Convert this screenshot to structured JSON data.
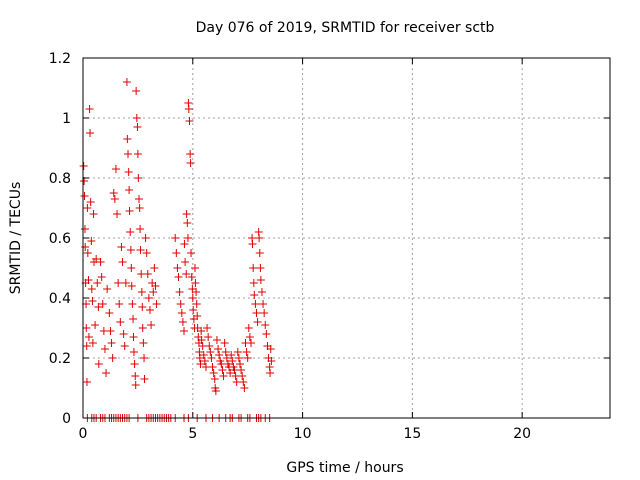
{
  "chart_data": {
    "type": "scatter",
    "title": "Day 076 of 2019, SRMTID for receiver sctb",
    "xlabel": "GPS time / hours",
    "ylabel": "SRMTID / TECUs",
    "xlim": [
      0,
      24
    ],
    "ylim": [
      0,
      1.2
    ],
    "xticks": [
      0,
      5,
      10,
      15,
      20
    ],
    "xtick_labels": [
      "0",
      "5",
      "10",
      "15",
      "20"
    ],
    "yticks": [
      0,
      0.2,
      0.4,
      0.6,
      0.8,
      1.0,
      1.2
    ],
    "ytick_labels": [
      "0",
      "0.2",
      "0.4",
      "0.6",
      "0.8",
      "1",
      "1.2"
    ],
    "grid": true,
    "marker": "+",
    "color": "#e00000",
    "series": [
      {
        "name": "SRMTID",
        "points": [
          [
            0.03,
            0.84
          ],
          [
            0.05,
            0.79
          ],
          [
            0.07,
            0.74
          ],
          [
            0.09,
            0.63
          ],
          [
            0.1,
            0.57
          ],
          [
            0.12,
            0.45
          ],
          [
            0.14,
            0.38
          ],
          [
            0.15,
            0.3
          ],
          [
            0.17,
            0.24
          ],
          [
            0.18,
            0.12
          ],
          [
            0.2,
            0.7
          ],
          [
            0.22,
            0.55
          ],
          [
            0.25,
            0.46
          ],
          [
            0.27,
            0.27
          ],
          [
            0.3,
            1.03
          ],
          [
            0.32,
            0.95
          ],
          [
            0.35,
            0.72
          ],
          [
            0.38,
            0.59
          ],
          [
            0.4,
            0.43
          ],
          [
            0.43,
            0.39
          ],
          [
            0.45,
            0.25
          ],
          [
            0.48,
            0.68
          ],
          [
            0.5,
            0.52
          ],
          [
            0.55,
            0.31
          ],
          [
            0.6,
            0.53
          ],
          [
            0.65,
            0.45
          ],
          [
            0.7,
            0.37
          ],
          [
            0.72,
            0.18
          ],
          [
            0.8,
            0.52
          ],
          [
            0.85,
            0.47
          ],
          [
            0.9,
            0.38
          ],
          [
            0.95,
            0.29
          ],
          [
            1.0,
            0.23
          ],
          [
            1.05,
            0.15
          ],
          [
            1.1,
            0.43
          ],
          [
            1.2,
            0.35
          ],
          [
            1.25,
            0.29
          ],
          [
            1.3,
            0.25
          ],
          [
            1.35,
            0.2
          ],
          [
            1.4,
            0.75
          ],
          [
            1.45,
            0.73
          ],
          [
            1.5,
            0.83
          ],
          [
            1.55,
            0.68
          ],
          [
            1.6,
            0.45
          ],
          [
            1.65,
            0.38
          ],
          [
            1.7,
            0.32
          ],
          [
            1.75,
            0.57
          ],
          [
            1.8,
            0.52
          ],
          [
            1.85,
            0.28
          ],
          [
            1.9,
            0.24
          ],
          [
            1.95,
            0.45
          ],
          [
            2.0,
            1.12
          ],
          [
            2.02,
            0.93
          ],
          [
            2.05,
            0.88
          ],
          [
            2.08,
            0.82
          ],
          [
            2.1,
            0.76
          ],
          [
            2.12,
            0.69
          ],
          [
            2.15,
            0.62
          ],
          [
            2.18,
            0.56
          ],
          [
            2.2,
            0.5
          ],
          [
            2.22,
            0.44
          ],
          [
            2.25,
            0.38
          ],
          [
            2.28,
            0.33
          ],
          [
            2.3,
            0.27
          ],
          [
            2.32,
            0.22
          ],
          [
            2.35,
            0.18
          ],
          [
            2.38,
            0.14
          ],
          [
            2.4,
            0.11
          ],
          [
            2.42,
            1.09
          ],
          [
            2.45,
            1.0
          ],
          [
            2.48,
            0.97
          ],
          [
            2.5,
            0.88
          ],
          [
            2.52,
            0.8
          ],
          [
            2.55,
            0.73
          ],
          [
            2.58,
            0.7
          ],
          [
            2.6,
            0.63
          ],
          [
            2.62,
            0.56
          ],
          [
            2.65,
            0.48
          ],
          [
            2.68,
            0.42
          ],
          [
            2.7,
            0.37
          ],
          [
            2.72,
            0.3
          ],
          [
            2.75,
            0.25
          ],
          [
            2.78,
            0.2
          ],
          [
            2.8,
            0.13
          ],
          [
            2.85,
            0.6
          ],
          [
            2.9,
            0.55
          ],
          [
            2.95,
            0.48
          ],
          [
            3.0,
            0.4
          ],
          [
            3.05,
            0.36
          ],
          [
            3.1,
            0.31
          ],
          [
            3.15,
            0.45
          ],
          [
            3.2,
            0.42
          ],
          [
            3.25,
            0.5
          ],
          [
            3.3,
            0.44
          ],
          [
            3.35,
            0.38
          ],
          [
            4.2,
            0.6
          ],
          [
            4.25,
            0.55
          ],
          [
            4.3,
            0.5
          ],
          [
            4.35,
            0.47
          ],
          [
            4.4,
            0.42
          ],
          [
            4.45,
            0.38
          ],
          [
            4.5,
            0.35
          ],
          [
            4.55,
            0.32
          ],
          [
            4.6,
            0.29
          ],
          [
            4.62,
            0.58
          ],
          [
            4.65,
            0.52
          ],
          [
            4.7,
            0.48
          ],
          [
            4.72,
            0.68
          ],
          [
            4.75,
            0.65
          ],
          [
            4.78,
            0.6
          ],
          [
            4.8,
            1.05
          ],
          [
            4.82,
            1.03
          ],
          [
            4.85,
            0.99
          ],
          [
            4.88,
            0.88
          ],
          [
            4.9,
            0.85
          ],
          [
            4.92,
            0.55
          ],
          [
            4.95,
            0.47
          ],
          [
            4.98,
            0.43
          ],
          [
            5.0,
            0.4
          ],
          [
            5.02,
            0.36
          ],
          [
            5.05,
            0.33
          ],
          [
            5.08,
            0.3
          ],
          [
            5.1,
            0.5
          ],
          [
            5.12,
            0.45
          ],
          [
            5.15,
            0.42
          ],
          [
            5.18,
            0.38
          ],
          [
            5.2,
            0.34
          ],
          [
            5.22,
            0.3
          ],
          [
            5.25,
            0.27
          ],
          [
            5.28,
            0.25
          ],
          [
            5.3,
            0.22
          ],
          [
            5.32,
            0.2
          ],
          [
            5.35,
            0.18
          ],
          [
            5.38,
            0.29
          ],
          [
            5.4,
            0.26
          ],
          [
            5.45,
            0.24
          ],
          [
            5.5,
            0.21
          ],
          [
            5.55,
            0.19
          ],
          [
            5.6,
            0.17
          ],
          [
            5.65,
            0.3
          ],
          [
            5.7,
            0.27
          ],
          [
            5.75,
            0.24
          ],
          [
            5.8,
            0.22
          ],
          [
            5.85,
            0.2
          ],
          [
            5.9,
            0.17
          ],
          [
            5.95,
            0.15
          ],
          [
            6.0,
            0.13
          ],
          [
            6.02,
            0.1
          ],
          [
            6.05,
            0.09
          ],
          [
            6.1,
            0.26
          ],
          [
            6.15,
            0.23
          ],
          [
            6.2,
            0.21
          ],
          [
            6.25,
            0.19
          ],
          [
            6.3,
            0.18
          ],
          [
            6.35,
            0.16
          ],
          [
            6.4,
            0.14
          ],
          [
            6.45,
            0.25
          ],
          [
            6.5,
            0.22
          ],
          [
            6.55,
            0.2
          ],
          [
            6.6,
            0.18
          ],
          [
            6.65,
            0.17
          ],
          [
            6.7,
            0.15
          ],
          [
            6.75,
            0.21
          ],
          [
            6.8,
            0.19
          ],
          [
            6.85,
            0.17
          ],
          [
            6.9,
            0.16
          ],
          [
            6.95,
            0.14
          ],
          [
            7.0,
            0.12
          ],
          [
            7.05,
            0.22
          ],
          [
            7.1,
            0.2
          ],
          [
            7.15,
            0.18
          ],
          [
            7.2,
            0.16
          ],
          [
            7.25,
            0.14
          ],
          [
            7.3,
            0.12
          ],
          [
            7.35,
            0.1
          ],
          [
            7.4,
            0.25
          ],
          [
            7.45,
            0.22
          ],
          [
            7.5,
            0.2
          ],
          [
            7.55,
            0.3
          ],
          [
            7.6,
            0.27
          ],
          [
            7.65,
            0.25
          ],
          [
            7.7,
            0.6
          ],
          [
            7.72,
            0.58
          ],
          [
            7.75,
            0.5
          ],
          [
            7.78,
            0.45
          ],
          [
            7.8,
            0.41
          ],
          [
            7.85,
            0.38
          ],
          [
            7.9,
            0.35
          ],
          [
            7.95,
            0.32
          ],
          [
            8.0,
            0.62
          ],
          [
            8.02,
            0.6
          ],
          [
            8.05,
            0.55
          ],
          [
            8.08,
            0.5
          ],
          [
            8.1,
            0.46
          ],
          [
            8.15,
            0.42
          ],
          [
            8.2,
            0.38
          ],
          [
            8.25,
            0.35
          ],
          [
            8.3,
            0.31
          ],
          [
            8.35,
            0.28
          ],
          [
            8.4,
            0.24
          ],
          [
            8.45,
            0.2
          ],
          [
            8.5,
            0.17
          ],
          [
            8.52,
            0.15
          ],
          [
            8.55,
            0.23
          ],
          [
            8.58,
            0.19
          ]
        ],
        "zero_points_x": [
          0.2,
          0.4,
          0.5,
          0.6,
          0.8,
          0.9,
          1.0,
          1.2,
          1.3,
          1.4,
          1.5,
          1.6,
          1.7,
          1.8,
          1.9,
          2.0,
          2.1,
          2.5,
          2.9,
          3.0,
          3.1,
          3.2,
          3.3,
          3.4,
          3.5,
          3.6,
          3.7,
          3.8,
          3.9,
          4.0,
          4.2,
          4.6,
          4.8,
          5.2,
          5.6,
          5.9,
          6.2,
          6.5,
          6.7,
          6.8,
          7.1,
          7.2,
          7.5,
          7.6,
          7.9,
          8.0,
          8.1,
          8.3,
          8.5
        ]
      }
    ]
  }
}
